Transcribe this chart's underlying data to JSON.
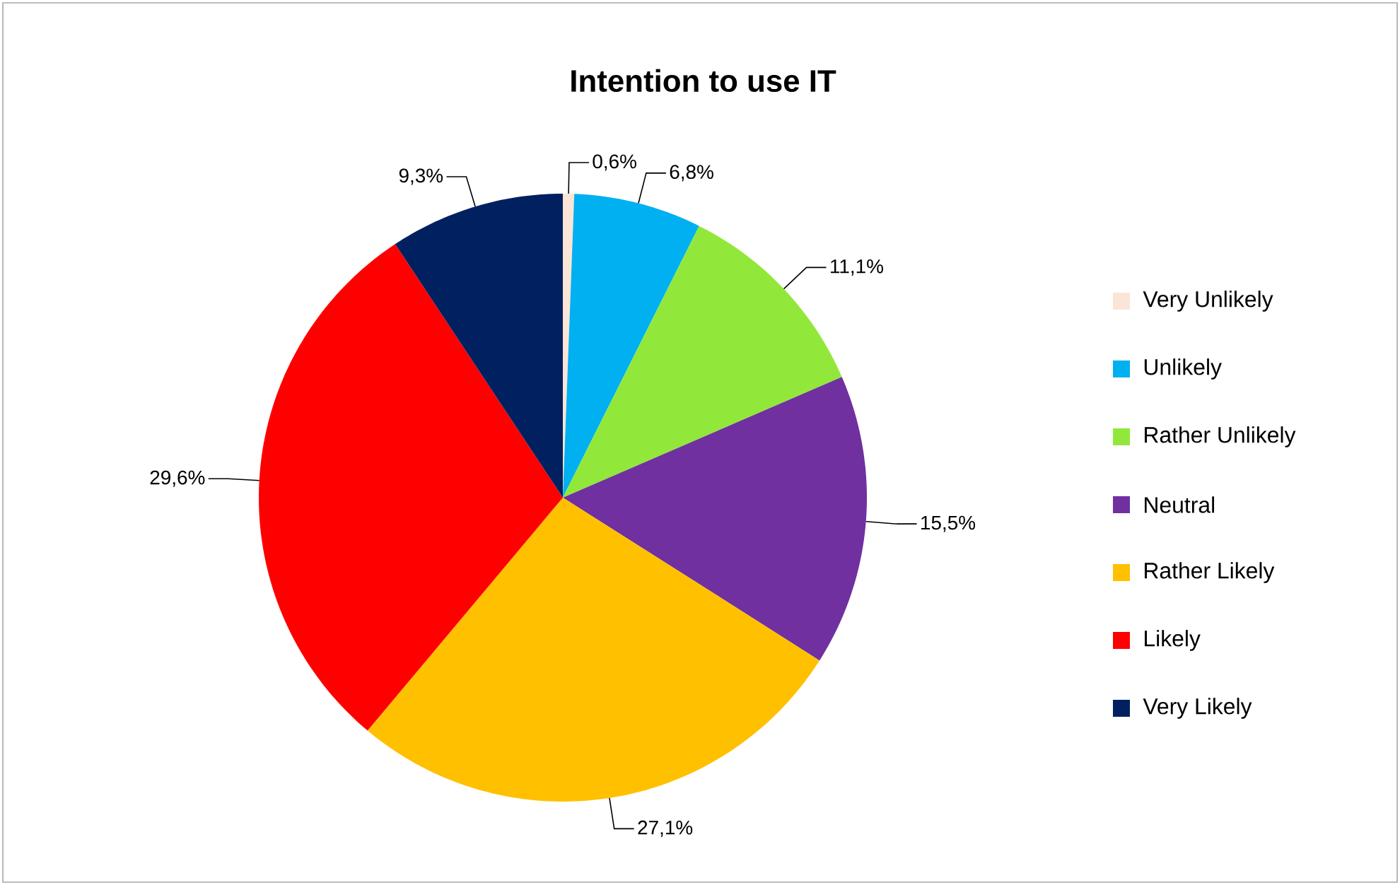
{
  "chart_data": {
    "type": "pie",
    "title": "Intention to use IT",
    "categories": [
      "Very Unlikely",
      "Unlikely",
      "Rather Unlikely",
      "Neutral",
      "Rather Likely",
      "Likely",
      "Very Likely"
    ],
    "values": [
      0.6,
      6.8,
      11.1,
      15.5,
      27.1,
      29.6,
      9.3
    ],
    "colors": [
      "#fbe5d6",
      "#00b0f0",
      "#92e83a",
      "#7030a0",
      "#ffc000",
      "#ff0000",
      "#002060"
    ],
    "value_labels": [
      "0,6%",
      "6,8%",
      "11,1%",
      "15,5%",
      "27,1%",
      "29,6%",
      "9,3%"
    ],
    "legend": "right"
  }
}
